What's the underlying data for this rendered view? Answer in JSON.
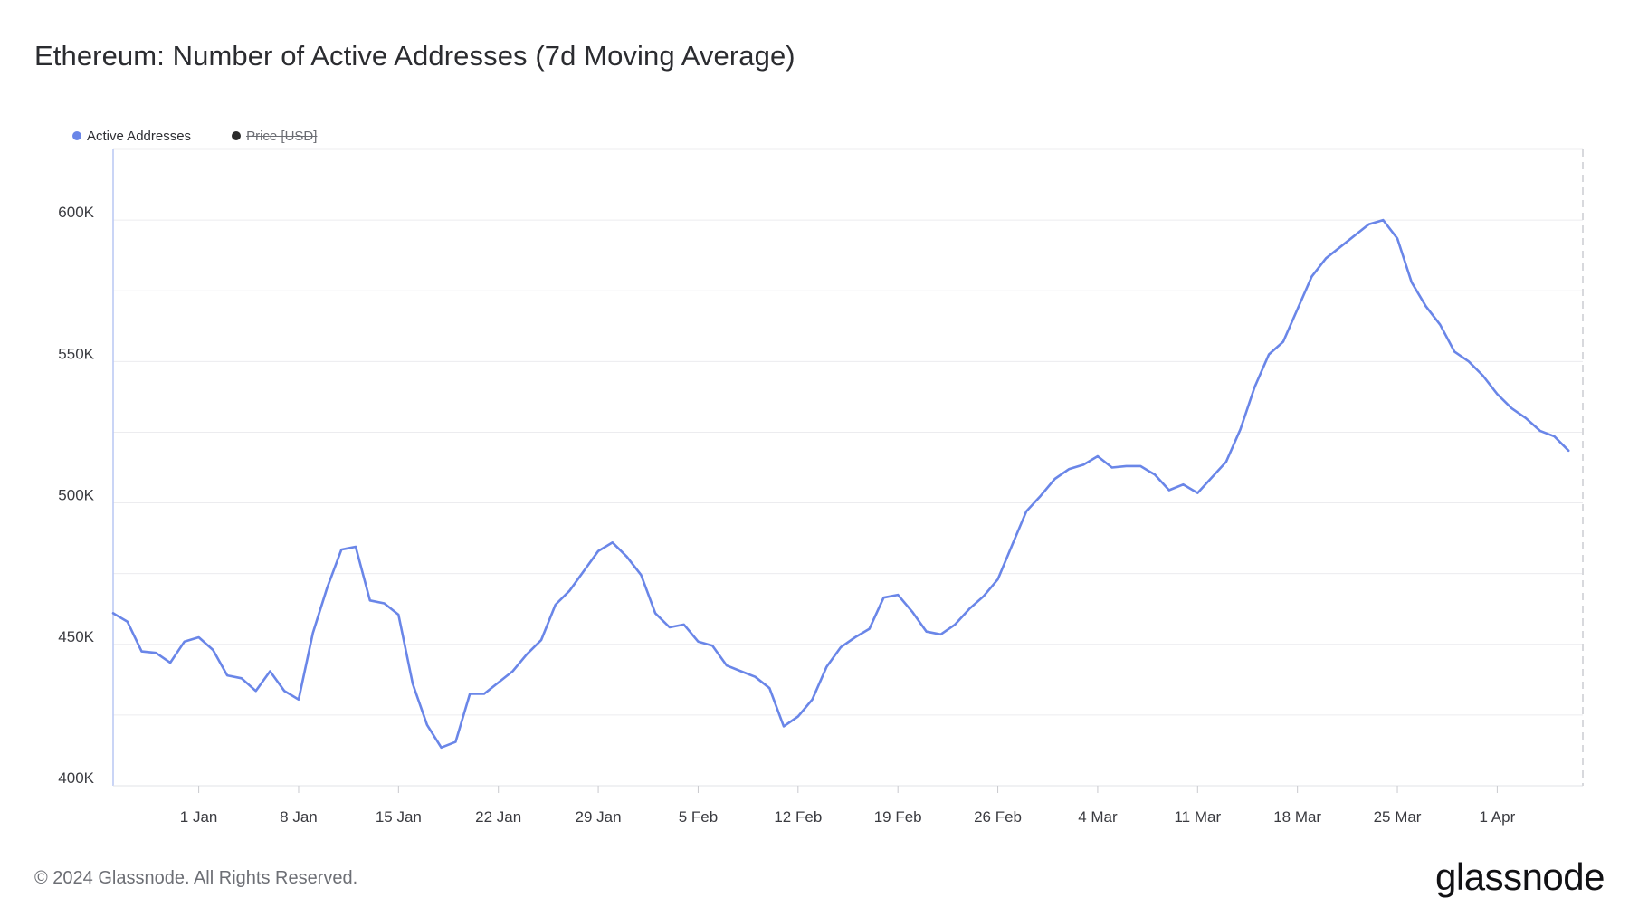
{
  "header": {
    "title": "Ethereum: Number of Active Addresses (7d Moving Average)"
  },
  "legend": {
    "items": [
      {
        "label": "Active Addresses",
        "color": "#6a86e8",
        "visible": true
      },
      {
        "label": "Price [USD]",
        "color": "#2b2b2b",
        "visible": false
      }
    ]
  },
  "footer": {
    "copyright": "© 2024 Glassnode. All Rights Reserved.",
    "brand": "glassnode"
  },
  "chart_data": {
    "type": "line",
    "title": "Ethereum: Number of Active Addresses (7d Moving Average)",
    "xlabel": "",
    "ylabel": "",
    "grid": true,
    "legend_position": "top-left",
    "x_range": [
      "2023-12-26",
      "2024-04-07"
    ],
    "ylim": [
      400000,
      625000
    ],
    "y_ticks": [
      {
        "value": 400000,
        "label": "400K"
      },
      {
        "value": 450000,
        "label": "450K"
      },
      {
        "value": 500000,
        "label": "500K"
      },
      {
        "value": 550000,
        "label": "550K"
      },
      {
        "value": 600000,
        "label": "600K"
      }
    ],
    "x_ticks": [
      {
        "date": "2024-01-01",
        "label": "1 Jan"
      },
      {
        "date": "2024-01-08",
        "label": "8 Jan"
      },
      {
        "date": "2024-01-15",
        "label": "15 Jan"
      },
      {
        "date": "2024-01-22",
        "label": "22 Jan"
      },
      {
        "date": "2024-01-29",
        "label": "29 Jan"
      },
      {
        "date": "2024-02-05",
        "label": "5 Feb"
      },
      {
        "date": "2024-02-12",
        "label": "12 Feb"
      },
      {
        "date": "2024-02-19",
        "label": "19 Feb"
      },
      {
        "date": "2024-02-26",
        "label": "26 Feb"
      },
      {
        "date": "2024-03-04",
        "label": "4 Mar"
      },
      {
        "date": "2024-03-11",
        "label": "11 Mar"
      },
      {
        "date": "2024-03-18",
        "label": "18 Mar"
      },
      {
        "date": "2024-03-25",
        "label": "25 Mar"
      },
      {
        "date": "2024-04-01",
        "label": "1 Apr"
      }
    ],
    "series": [
      {
        "name": "Active Addresses",
        "color": "#6a86e8",
        "points": [
          [
            "2023-12-26",
            461000
          ],
          [
            "2023-12-27",
            458000
          ],
          [
            "2023-12-28",
            447500
          ],
          [
            "2023-12-29",
            447000
          ],
          [
            "2023-12-30",
            443500
          ],
          [
            "2023-12-31",
            451000
          ],
          [
            "2024-01-01",
            452500
          ],
          [
            "2024-01-02",
            448000
          ],
          [
            "2024-01-03",
            439000
          ],
          [
            "2024-01-04",
            438000
          ],
          [
            "2024-01-05",
            433500
          ],
          [
            "2024-01-06",
            440500
          ],
          [
            "2024-01-07",
            433500
          ],
          [
            "2024-01-08",
            430500
          ],
          [
            "2024-01-09",
            454000
          ],
          [
            "2024-01-10",
            470000
          ],
          [
            "2024-01-11",
            483500
          ],
          [
            "2024-01-12",
            484500
          ],
          [
            "2024-01-13",
            465500
          ],
          [
            "2024-01-14",
            464500
          ],
          [
            "2024-01-15",
            460500
          ],
          [
            "2024-01-16",
            436000
          ],
          [
            "2024-01-17",
            421500
          ],
          [
            "2024-01-18",
            413500
          ],
          [
            "2024-01-19",
            415500
          ],
          [
            "2024-01-20",
            432500
          ],
          [
            "2024-01-21",
            432500
          ],
          [
            "2024-01-22",
            436500
          ],
          [
            "2024-01-23",
            440500
          ],
          [
            "2024-01-24",
            446500
          ],
          [
            "2024-01-25",
            451500
          ],
          [
            "2024-01-26",
            464000
          ],
          [
            "2024-01-27",
            469000
          ],
          [
            "2024-01-28",
            476000
          ],
          [
            "2024-01-29",
            483000
          ],
          [
            "2024-01-30",
            486000
          ],
          [
            "2024-01-31",
            481000
          ],
          [
            "2024-02-01",
            474500
          ],
          [
            "2024-02-02",
            461000
          ],
          [
            "2024-02-03",
            456000
          ],
          [
            "2024-02-04",
            457000
          ],
          [
            "2024-02-05",
            451000
          ],
          [
            "2024-02-06",
            449500
          ],
          [
            "2024-02-07",
            442500
          ],
          [
            "2024-02-08",
            440500
          ],
          [
            "2024-02-09",
            438500
          ],
          [
            "2024-02-10",
            434500
          ],
          [
            "2024-02-11",
            421000
          ],
          [
            "2024-02-12",
            424500
          ],
          [
            "2024-02-13",
            430500
          ],
          [
            "2024-02-14",
            442000
          ],
          [
            "2024-02-15",
            449000
          ],
          [
            "2024-02-16",
            452500
          ],
          [
            "2024-02-17",
            455500
          ],
          [
            "2024-02-18",
            466500
          ],
          [
            "2024-02-19",
            467500
          ],
          [
            "2024-02-20",
            461500
          ],
          [
            "2024-02-21",
            454500
          ],
          [
            "2024-02-22",
            453500
          ],
          [
            "2024-02-23",
            457000
          ],
          [
            "2024-02-24",
            462500
          ],
          [
            "2024-02-25",
            467000
          ],
          [
            "2024-02-26",
            473000
          ],
          [
            "2024-02-27",
            485000
          ],
          [
            "2024-02-28",
            497000
          ],
          [
            "2024-02-29",
            502500
          ],
          [
            "2024-03-01",
            508500
          ],
          [
            "2024-03-02",
            512000
          ],
          [
            "2024-03-03",
            513500
          ],
          [
            "2024-03-04",
            516500
          ],
          [
            "2024-03-05",
            512500
          ],
          [
            "2024-03-06",
            513000
          ],
          [
            "2024-03-07",
            513000
          ],
          [
            "2024-03-08",
            510000
          ],
          [
            "2024-03-09",
            504500
          ],
          [
            "2024-03-10",
            506500
          ],
          [
            "2024-03-11",
            503500
          ],
          [
            "2024-03-12",
            509000
          ],
          [
            "2024-03-13",
            514500
          ],
          [
            "2024-03-14",
            526000
          ],
          [
            "2024-03-15",
            541000
          ],
          [
            "2024-03-16",
            552500
          ],
          [
            "2024-03-17",
            557000
          ],
          [
            "2024-03-18",
            568500
          ],
          [
            "2024-03-19",
            580000
          ],
          [
            "2024-03-20",
            586500
          ],
          [
            "2024-03-21",
            590500
          ],
          [
            "2024-03-22",
            594500
          ],
          [
            "2024-03-23",
            598500
          ],
          [
            "2024-03-24",
            600000
          ],
          [
            "2024-03-25",
            593500
          ],
          [
            "2024-03-26",
            578000
          ],
          [
            "2024-03-27",
            569500
          ],
          [
            "2024-03-28",
            563000
          ],
          [
            "2024-03-29",
            553500
          ],
          [
            "2024-03-30",
            550000
          ],
          [
            "2024-03-31",
            545000
          ],
          [
            "2024-04-01",
            538500
          ],
          [
            "2024-04-02",
            533500
          ],
          [
            "2024-04-03",
            530000
          ],
          [
            "2024-04-04",
            525500
          ],
          [
            "2024-04-05",
            523500
          ],
          [
            "2024-04-06",
            518500
          ]
        ]
      }
    ]
  }
}
